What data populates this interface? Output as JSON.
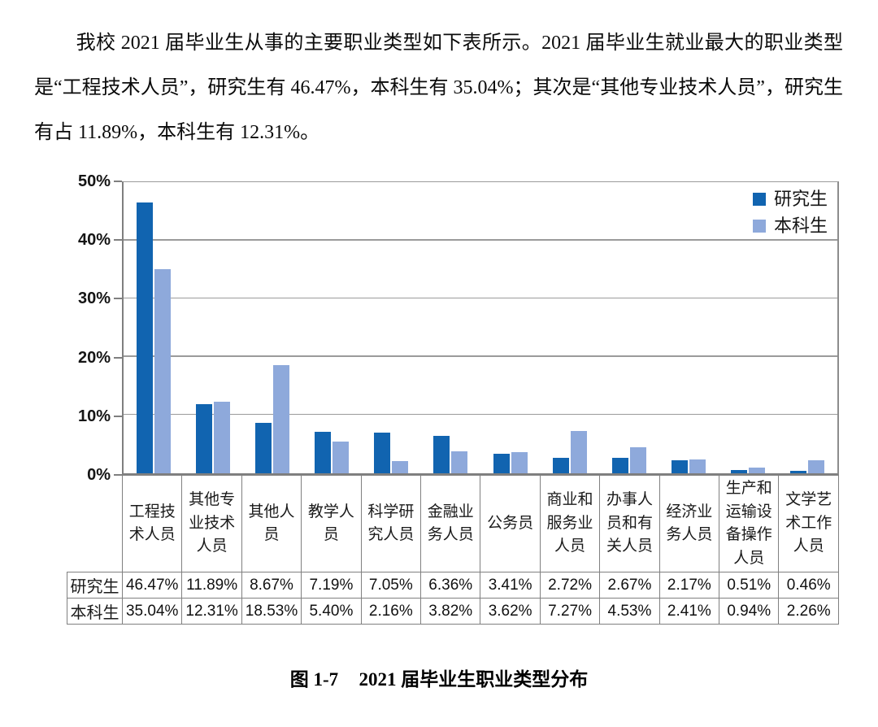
{
  "document": {
    "paragraph": "我校 2021 届毕业生从事的主要职业类型如下表所示。2021 届毕业生就业最大的职业类型是“工程技术人员”，研究生有 46.47%，本科生有 35.04%；其次是“其他专业技术人员”，研究生有占 11.89%，本科生有 12.31%。",
    "caption_label": "图 1-7",
    "caption_title": "2021 届毕业生职业类型分布"
  },
  "chart_data": {
    "type": "bar",
    "title": "",
    "xlabel": "",
    "ylabel": "",
    "categories": [
      "工程技术人员",
      "其他专业技术人员",
      "其他人员",
      "教学人员",
      "科学研究人员",
      "金融业务人员",
      "公务员",
      "商业和服务业人员",
      "办事人员和有关人员",
      "经济业务人员",
      "生产和运输设备操作人员",
      "文学艺术工作人员"
    ],
    "series": [
      {
        "name": "研究生",
        "color": "#1164B0",
        "values": [
          46.47,
          11.89,
          8.67,
          7.19,
          7.05,
          6.36,
          3.41,
          2.72,
          2.67,
          2.17,
          0.51,
          0.46
        ]
      },
      {
        "name": "本科生",
        "color": "#8EA9DB",
        "values": [
          35.04,
          12.31,
          18.53,
          5.4,
          2.16,
          3.82,
          3.62,
          7.27,
          4.53,
          2.41,
          0.94,
          2.26
        ]
      }
    ],
    "ylim": [
      0,
      50
    ],
    "yticks": [
      "0%",
      "10%",
      "20%",
      "30%",
      "40%",
      "50%"
    ],
    "grid": true,
    "legend_position": "top-right",
    "data_table_shown": true,
    "value_format": "0.00%",
    "grid_color": "#9B9B9B",
    "axis_color": "#7F7F7F",
    "table_border_color": "#808080"
  }
}
